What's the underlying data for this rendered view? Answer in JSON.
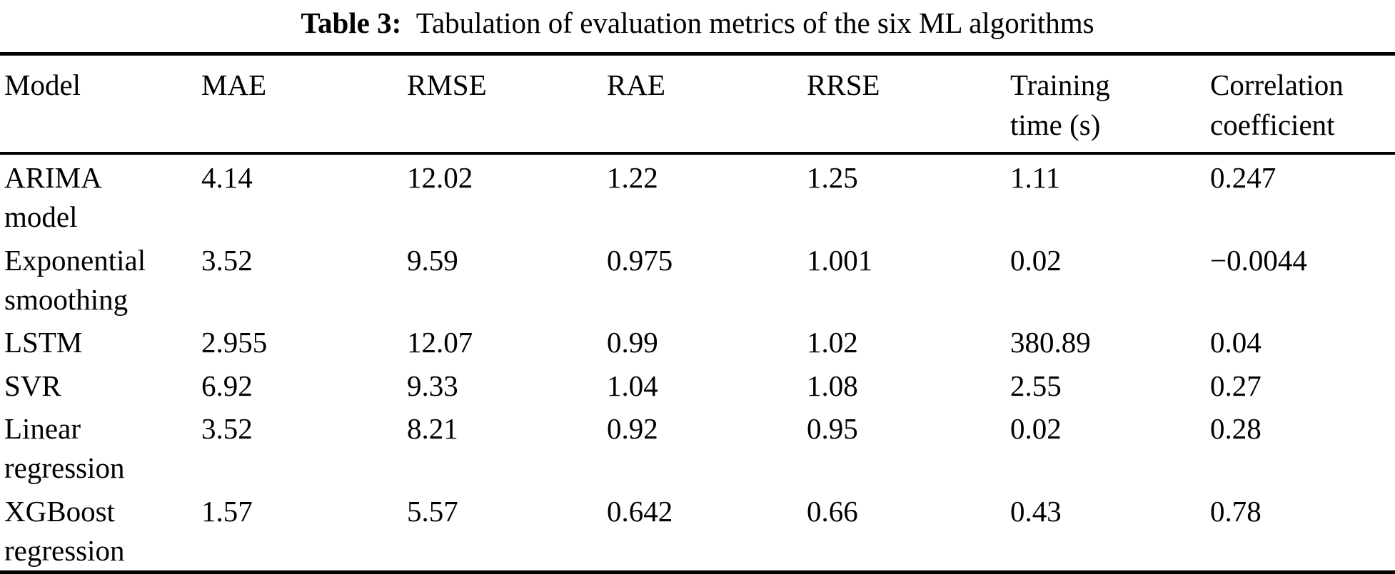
{
  "caption": {
    "label": "Table 3:",
    "text": "Tabulation of evaluation metrics of the six ML algorithms"
  },
  "table": {
    "columns": [
      "Model",
      "MAE",
      "RMSE",
      "RAE",
      "RRSE",
      "Training\ntime (s)",
      "Correlation\ncoefficient"
    ],
    "rows": [
      {
        "model": "ARIMA\nmodel",
        "mae": "4.14",
        "rmse": "12.02",
        "rae": "1.22",
        "rrse": "1.25",
        "training_time_s": "1.11",
        "correlation_coefficient": "0.247"
      },
      {
        "model": "Exponential\nsmoothing",
        "mae": "3.52",
        "rmse": "9.59",
        "rae": "0.975",
        "rrse": "1.001",
        "training_time_s": "0.02",
        "correlation_coefficient": "−0.0044"
      },
      {
        "model": "LSTM",
        "mae": "2.955",
        "rmse": "12.07",
        "rae": "0.99",
        "rrse": "1.02",
        "training_time_s": "380.89",
        "correlation_coefficient": "0.04"
      },
      {
        "model": "SVR",
        "mae": "6.92",
        "rmse": "9.33",
        "rae": "1.04",
        "rrse": "1.08",
        "training_time_s": "2.55",
        "correlation_coefficient": "0.27"
      },
      {
        "model": "Linear\nregression",
        "mae": "3.52",
        "rmse": "8.21",
        "rae": "0.92",
        "rrse": "0.95",
        "training_time_s": "0.02",
        "correlation_coefficient": "0.28"
      },
      {
        "model": "XGBoost\nregression",
        "mae": "1.57",
        "rmse": "5.57",
        "rae": "0.642",
        "rrse": "0.66",
        "training_time_s": "0.43",
        "correlation_coefficient": "0.78"
      }
    ]
  }
}
